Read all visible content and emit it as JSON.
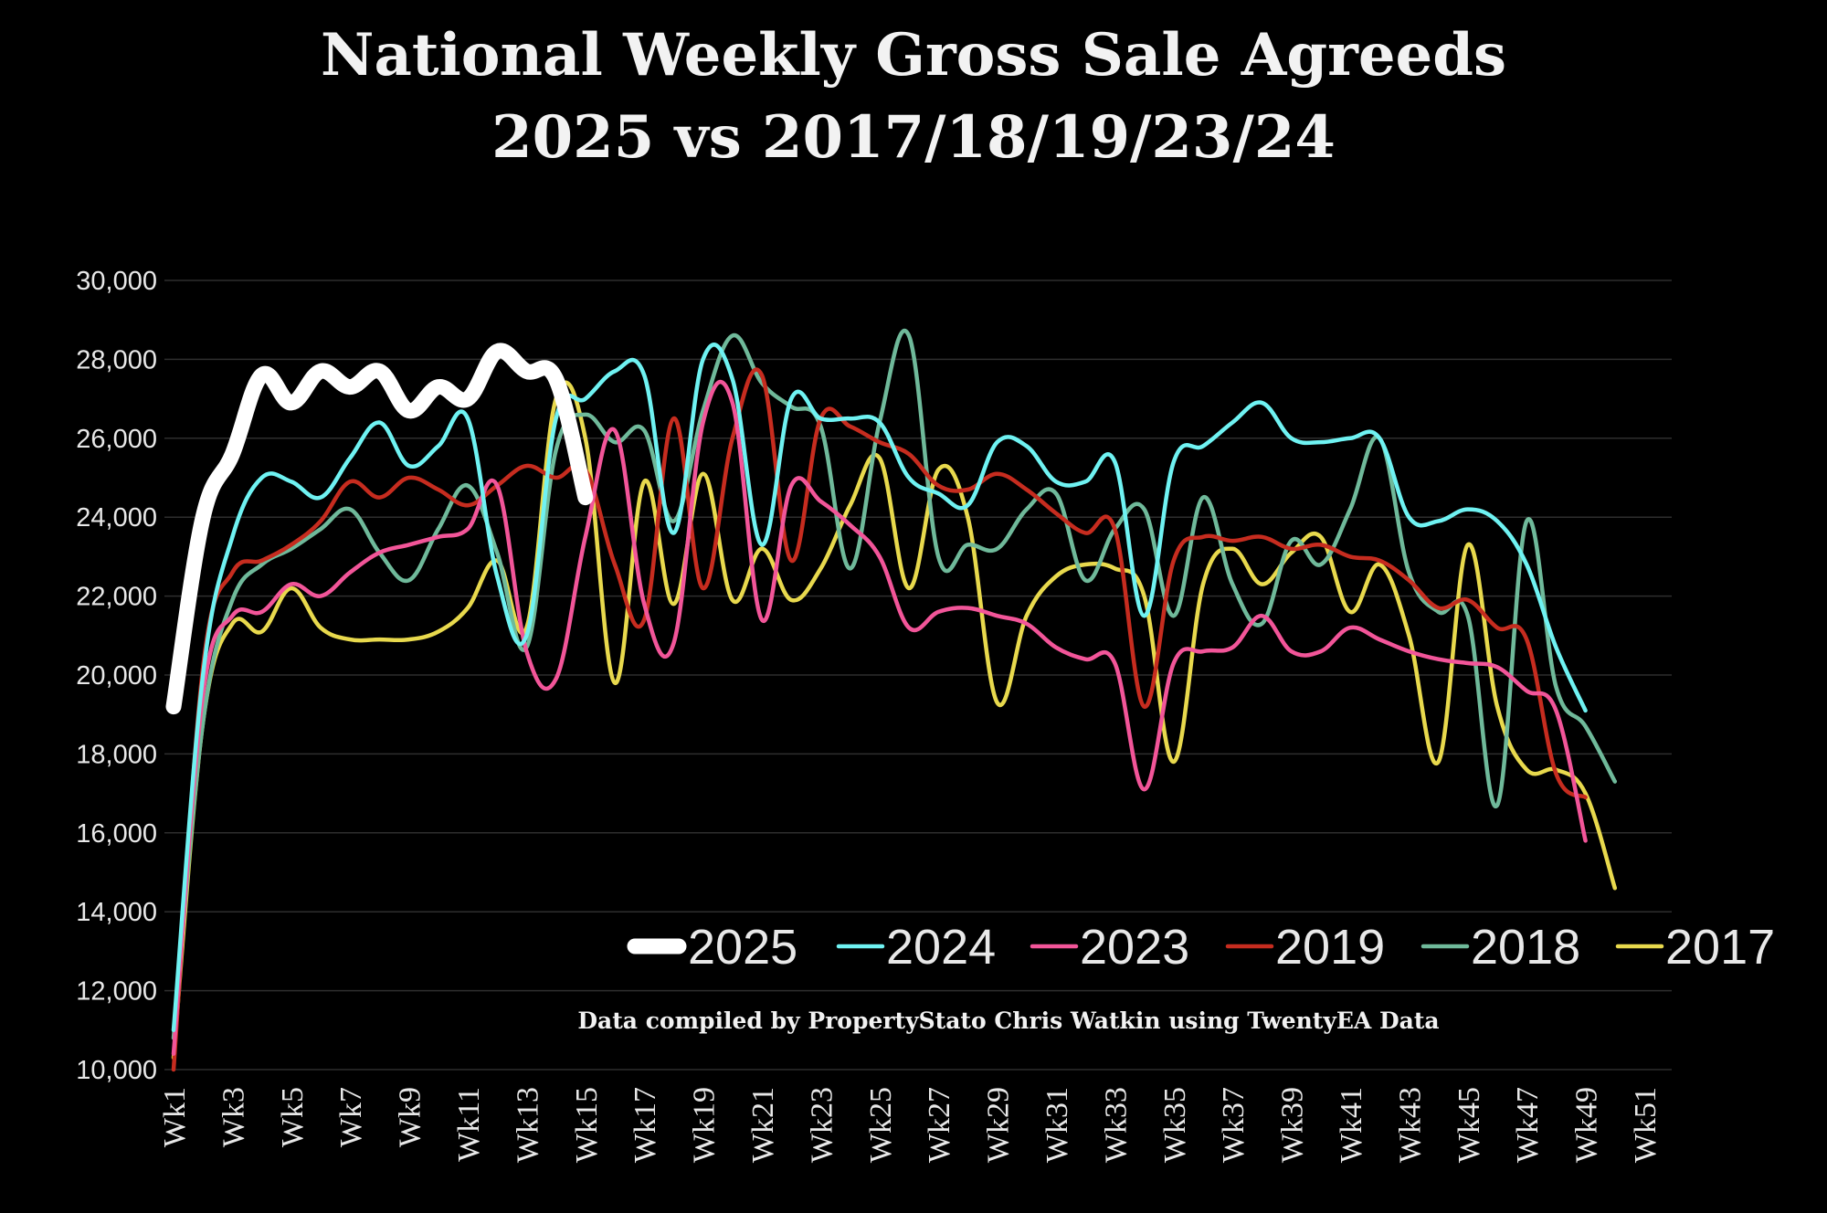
{
  "chart_data": {
    "type": "line",
    "title_line1": "National Weekly Gross Sale Agreeds",
    "title_line2": "2025 vs 2017/18/19/23/24",
    "credit": "Data compiled by PropertyStato Chris Watkin using TwentyEA Data",
    "xlabel": "",
    "ylabel": "",
    "ylim": [
      10000,
      30000
    ],
    "y_ticks": [
      "10,000",
      "12,000",
      "14,000",
      "16,000",
      "18,000",
      "20,000",
      "22,000",
      "24,000",
      "26,000",
      "28,000",
      "30,000"
    ],
    "y_tick_values": [
      10000,
      12000,
      14000,
      16000,
      18000,
      20000,
      22000,
      24000,
      26000,
      28000,
      30000
    ],
    "x_tick_labels": [
      "Wk1",
      "Wk3",
      "Wk5",
      "Wk7",
      "Wk9",
      "Wk11",
      "Wk13",
      "Wk15",
      "Wk17",
      "Wk19",
      "Wk21",
      "Wk23",
      "Wk25",
      "Wk27",
      "Wk29",
      "Wk31",
      "Wk33",
      "Wk35",
      "Wk37",
      "Wk39",
      "Wk41",
      "Wk43",
      "Wk45",
      "Wk47",
      "Wk49",
      "Wk51"
    ],
    "x_tick_weeks": [
      1,
      3,
      5,
      7,
      9,
      11,
      13,
      15,
      17,
      19,
      21,
      23,
      25,
      27,
      29,
      31,
      33,
      35,
      37,
      39,
      41,
      43,
      45,
      47,
      49,
      51
    ],
    "grid": true,
    "legend_position": "bottom-right",
    "series": [
      {
        "name": "2025",
        "color": "#ffffff",
        "thick": true,
        "values": [
          19200,
          24000,
          25600,
          27600,
          26900,
          27700,
          27300,
          27700,
          26700,
          27300,
          27000,
          28200,
          27700,
          27500,
          24500
        ]
      },
      {
        "name": "2024",
        "color": "#6ff2f2",
        "thick": false,
        "values": [
          11000,
          20000,
          23500,
          25000,
          24900,
          24500,
          25500,
          26400,
          25300,
          25800,
          26500,
          22500,
          21000,
          26500,
          27000,
          27700,
          27600,
          23600,
          28000,
          27500,
          23300,
          27000,
          26500,
          26500,
          26400,
          25000,
          24600,
          24300,
          25900,
          25800,
          24900,
          24900,
          25400,
          21500,
          25400,
          25800,
          26400,
          26900,
          26000,
          25900,
          26000,
          26000,
          24000,
          23900,
          24200,
          23900,
          22800,
          20700,
          19100
        ]
      },
      {
        "name": "2023",
        "color": "#f25599",
        "thick": false,
        "values": [
          10400,
          19500,
          21500,
          21600,
          22300,
          22000,
          22600,
          23100,
          23300,
          23500,
          23700,
          24800,
          20600,
          19900,
          23500,
          26200,
          21800,
          20800,
          26400,
          26900,
          21400,
          24800,
          24400,
          23800,
          23000,
          21200,
          21600,
          21700,
          21500,
          21300,
          20700,
          20400,
          20300,
          17100,
          20300,
          20600,
          20700,
          21500,
          20600,
          20600,
          21200,
          20900,
          20600,
          20400,
          20300,
          20200,
          19600,
          19100,
          15800
        ]
      },
      {
        "name": "2019",
        "color": "#c62c1f",
        "thick": false,
        "values": [
          10000,
          20200,
          22600,
          22900,
          23300,
          23900,
          24900,
          24500,
          25000,
          24700,
          24300,
          24800,
          25300,
          25000,
          25200,
          22800,
          21400,
          26500,
          22200,
          26000,
          27600,
          22900,
          26500,
          26300,
          25900,
          25600,
          24800,
          24700,
          25100,
          24700,
          24100,
          23600,
          23700,
          19200,
          22900,
          23500,
          23400,
          23500,
          23200,
          23300,
          23000,
          22900,
          22400,
          21700,
          21900,
          21200,
          20900,
          17500,
          16900
        ]
      },
      {
        "name": "2018",
        "color": "#6fb99a",
        "thick": false,
        "values": [
          10800,
          18800,
          21900,
          22800,
          23200,
          23700,
          24200,
          23100,
          22400,
          23700,
          24800,
          23100,
          20700,
          25700,
          26600,
          25900,
          26200,
          23900,
          26700,
          28600,
          27400,
          26800,
          26300,
          22700,
          26400,
          28600,
          23000,
          23300,
          23200,
          24200,
          24600,
          22400,
          23700,
          24200,
          21500,
          24500,
          22300,
          21300,
          23400,
          22800,
          24200,
          26000,
          22600,
          21600,
          21500,
          16700,
          23900,
          19700,
          18700,
          17300
        ]
      },
      {
        "name": "2017",
        "color": "#e8d94d",
        "thick": false,
        "values": [
          10300,
          18800,
          21300,
          21100,
          22200,
          21200,
          20900,
          20900,
          20900,
          21100,
          21700,
          22900,
          21200,
          27000,
          26000,
          19800,
          24900,
          21800,
          25100,
          21900,
          23200,
          21900,
          22700,
          24300,
          25500,
          22200,
          25200,
          24000,
          19300,
          21500,
          22500,
          22800,
          22700,
          22000,
          17800,
          22300,
          23200,
          22300,
          23100,
          23500,
          21600,
          22800,
          21000,
          17800,
          23300,
          19200,
          17600,
          17600,
          17000,
          14600
        ]
      }
    ]
  }
}
